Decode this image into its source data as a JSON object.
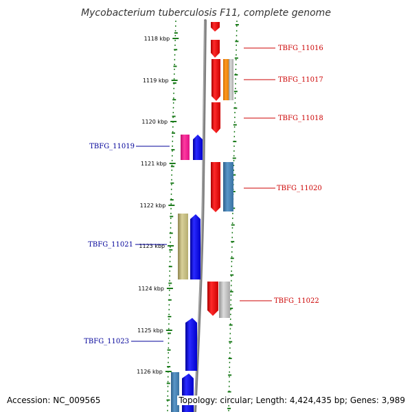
{
  "title": "Mycobacterium tuberculosis F11, complete genome",
  "ticks": [
    {
      "label": "1118 kbp"
    },
    {
      "label": "1119 kbp"
    },
    {
      "label": "1120 kbp"
    },
    {
      "label": "1121 kbp"
    },
    {
      "label": "1122 kbp"
    },
    {
      "label": "1123 kbp"
    },
    {
      "label": "1124 kbp"
    },
    {
      "label": "1125 kbp"
    },
    {
      "label": "1126 kbp"
    }
  ],
  "genes": [
    {
      "label": "TBFG_11016",
      "strand": "forward",
      "color": "#cc0000"
    },
    {
      "label": "TBFG_11017",
      "strand": "forward",
      "color": "#cc0000"
    },
    {
      "label": "TBFG_11018",
      "strand": "forward",
      "color": "#cc0000"
    },
    {
      "label": "TBFG_11019",
      "strand": "reverse",
      "color": "#000099"
    },
    {
      "label": "TBFG_11020",
      "strand": "forward",
      "color": "#cc0000"
    },
    {
      "label": "TBFG_11021",
      "strand": "reverse",
      "color": "#000099"
    },
    {
      "label": "TBFG_11022",
      "strand": "forward",
      "color": "#cc0000"
    },
    {
      "label": "TBFG_11023",
      "strand": "reverse",
      "color": "#000099"
    }
  ],
  "colors": {
    "tick": "#1a7a1a",
    "backbone": "#7a7a7a",
    "red": "#ff0000",
    "blue": "#0000ff",
    "orange": "#ff8c00",
    "steel": "#4682b4",
    "pink": "#ff1493",
    "khaki": "#c8c080",
    "gray": "#b8b8b8"
  },
  "accession": "Accession: NC_009565",
  "summary": "Topology: circular; Length: 4,424,435 bp; Genes: 3,989"
}
